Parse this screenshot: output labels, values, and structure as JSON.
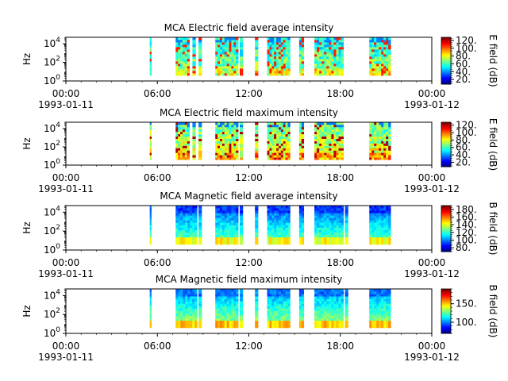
{
  "chart_data": [
    {
      "type": "heatmap",
      "title": "MCA  Electric field average intensity",
      "ylabel": "Hz",
      "y_scale": "log",
      "y_ticks": [
        "10^0",
        "10^2",
        "10^4"
      ],
      "ylim": [
        1,
        50000
      ],
      "x_ticks": [
        {
          "time": "00:00",
          "date": "1993-01-11"
        },
        {
          "time": "06:00",
          "date": ""
        },
        {
          "time": "12:00",
          "date": ""
        },
        {
          "time": "18:00",
          "date": ""
        },
        {
          "time": "00:00",
          "date": "1993-01-12"
        }
      ],
      "colorbar_label": "E field (dB)",
      "colorbar_ticks": [
        20,
        40,
        60,
        80,
        100,
        120
      ],
      "colorbar_range": [
        8,
        128
      ],
      "colormap": "jet",
      "data_intervals_hours": [
        [
          5.5,
          5.6
        ],
        [
          7.2,
          8.1
        ],
        [
          8.3,
          8.5
        ],
        [
          8.7,
          8.9
        ],
        [
          9.8,
          11.3
        ],
        [
          11.4,
          11.6
        ],
        [
          12.4,
          12.6
        ],
        [
          13.2,
          14.7
        ],
        [
          15.3,
          15.6
        ],
        [
          16.3,
          18.2
        ],
        [
          19.9,
          21.3
        ]
      ]
    },
    {
      "type": "heatmap",
      "title": "MCA  Electric field maximum intensity",
      "ylabel": "Hz",
      "y_scale": "log",
      "y_ticks": [
        "10^0",
        "10^2",
        "10^4"
      ],
      "ylim": [
        1,
        50000
      ],
      "x_ticks": [
        {
          "time": "00:00",
          "date": "1993-01-11"
        },
        {
          "time": "06:00",
          "date": ""
        },
        {
          "time": "12:00",
          "date": ""
        },
        {
          "time": "18:00",
          "date": ""
        },
        {
          "time": "00:00",
          "date": "1993-01-12"
        }
      ],
      "colorbar_label": "E field (dB)",
      "colorbar_ticks": [
        20,
        40,
        60,
        80,
        100,
        120
      ],
      "colorbar_range": [
        8,
        128
      ],
      "colormap": "jet",
      "data_intervals_hours": [
        [
          5.5,
          5.6
        ],
        [
          7.2,
          8.1
        ],
        [
          8.3,
          8.5
        ],
        [
          8.7,
          8.9
        ],
        [
          9.8,
          11.3
        ],
        [
          11.4,
          11.6
        ],
        [
          12.4,
          12.6
        ],
        [
          13.2,
          14.7
        ],
        [
          15.3,
          15.6
        ],
        [
          16.3,
          18.2
        ],
        [
          19.9,
          21.3
        ]
      ]
    },
    {
      "type": "heatmap",
      "title": "MCA  Magnetic field average intensity",
      "ylabel": "Hz",
      "y_scale": "log",
      "y_ticks": [
        "10^0",
        "10^2",
        "10^4"
      ],
      "ylim": [
        1,
        50000
      ],
      "x_ticks": [
        {
          "time": "00:00",
          "date": "1993-01-11"
        },
        {
          "time": "06:00",
          "date": ""
        },
        {
          "time": "12:00",
          "date": ""
        },
        {
          "time": "18:00",
          "date": ""
        },
        {
          "time": "00:00",
          "date": "1993-01-12"
        }
      ],
      "colorbar_label": "B field (dB)",
      "colorbar_ticks": [
        80,
        100,
        120,
        140,
        160,
        180
      ],
      "colorbar_range": [
        70,
        190
      ],
      "colormap": "jet",
      "data_intervals_hours": [
        [
          5.5,
          5.6
        ],
        [
          7.2,
          8.6
        ],
        [
          8.7,
          8.9
        ],
        [
          9.8,
          11.3
        ],
        [
          11.4,
          11.6
        ],
        [
          12.4,
          12.6
        ],
        [
          13.2,
          14.7
        ],
        [
          15.3,
          15.6
        ],
        [
          16.3,
          18.2
        ],
        [
          18.3,
          18.5
        ],
        [
          19.9,
          21.3
        ]
      ]
    },
    {
      "type": "heatmap",
      "title": "MCA  Magnetic field maximum intensity",
      "ylabel": "Hz",
      "y_scale": "log",
      "y_ticks": [
        "10^0",
        "10^2",
        "10^4"
      ],
      "ylim": [
        1,
        50000
      ],
      "x_ticks": [
        {
          "time": "00:00",
          "date": "1993-01-11"
        },
        {
          "time": "06:00",
          "date": ""
        },
        {
          "time": "12:00",
          "date": ""
        },
        {
          "time": "18:00",
          "date": ""
        },
        {
          "time": "00:00",
          "date": "1993-01-12"
        }
      ],
      "colorbar_label": "B field (dB)",
      "colorbar_ticks": [
        100,
        150
      ],
      "colorbar_range": [
        70,
        190
      ],
      "colormap": "jet",
      "data_intervals_hours": [
        [
          5.5,
          5.6
        ],
        [
          7.2,
          8.6
        ],
        [
          8.7,
          8.9
        ],
        [
          9.8,
          11.3
        ],
        [
          11.4,
          11.6
        ],
        [
          12.4,
          12.6
        ],
        [
          13.2,
          14.7
        ],
        [
          15.3,
          15.6
        ],
        [
          16.3,
          18.2
        ],
        [
          18.3,
          18.5
        ],
        [
          19.9,
          21.3
        ]
      ]
    }
  ]
}
